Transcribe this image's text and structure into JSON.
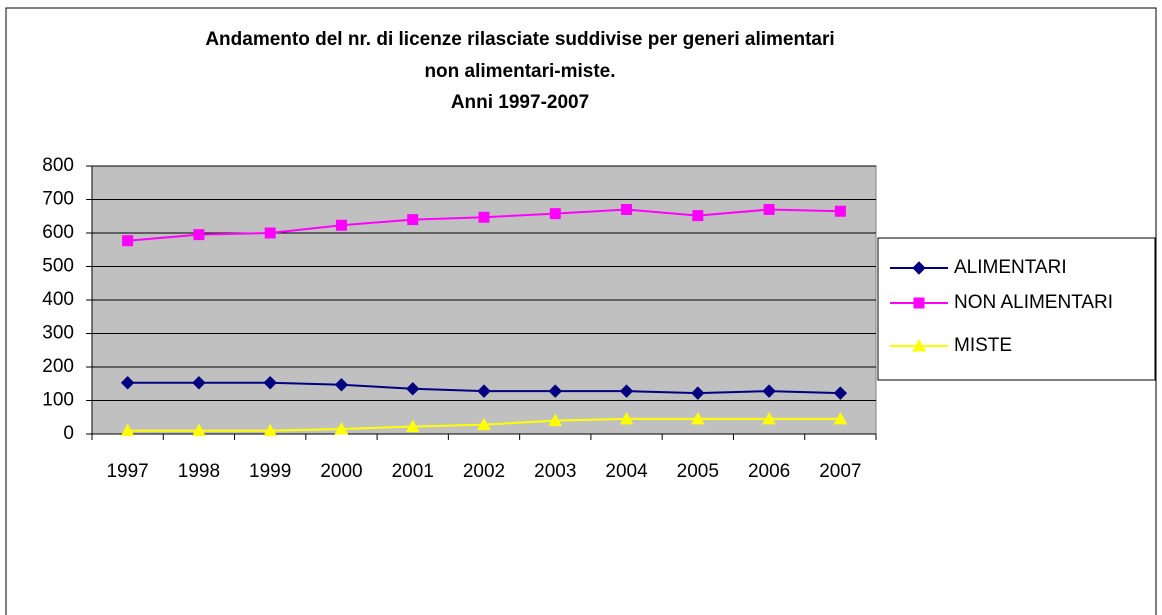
{
  "chart_data": {
    "type": "line",
    "title": [
      "Andamento del nr. di licenze rilasciate suddivise per generi alimentari",
      "non alimentari-miste.",
      "Anni 1997-2007"
    ],
    "categories": [
      "1997",
      "1998",
      "1999",
      "2000",
      "2001",
      "2002",
      "2003",
      "2004",
      "2005",
      "2006",
      "2007"
    ],
    "series": [
      {
        "name": "ALIMENTARI",
        "color": "#000080",
        "marker": "diamond",
        "values": [
          153,
          153,
          153,
          147,
          135,
          128,
          128,
          128,
          122,
          128,
          122
        ]
      },
      {
        "name": "NON ALIMENTARI",
        "color": "#ff00ff",
        "marker": "square",
        "values": [
          577,
          595,
          600,
          623,
          640,
          647,
          658,
          670,
          652,
          670,
          665
        ]
      },
      {
        "name": "MISTE",
        "color": "#ffff00",
        "marker": "triangle",
        "values": [
          10,
          10,
          10,
          15,
          22,
          28,
          40,
          45,
          45,
          45,
          45
        ]
      }
    ],
    "ylim": [
      0,
      800
    ],
    "yticks": [
      0,
      100,
      200,
      300,
      400,
      500,
      600,
      700,
      800
    ],
    "grid": true,
    "legend": "right",
    "plot_background": "#c0c0c0"
  }
}
